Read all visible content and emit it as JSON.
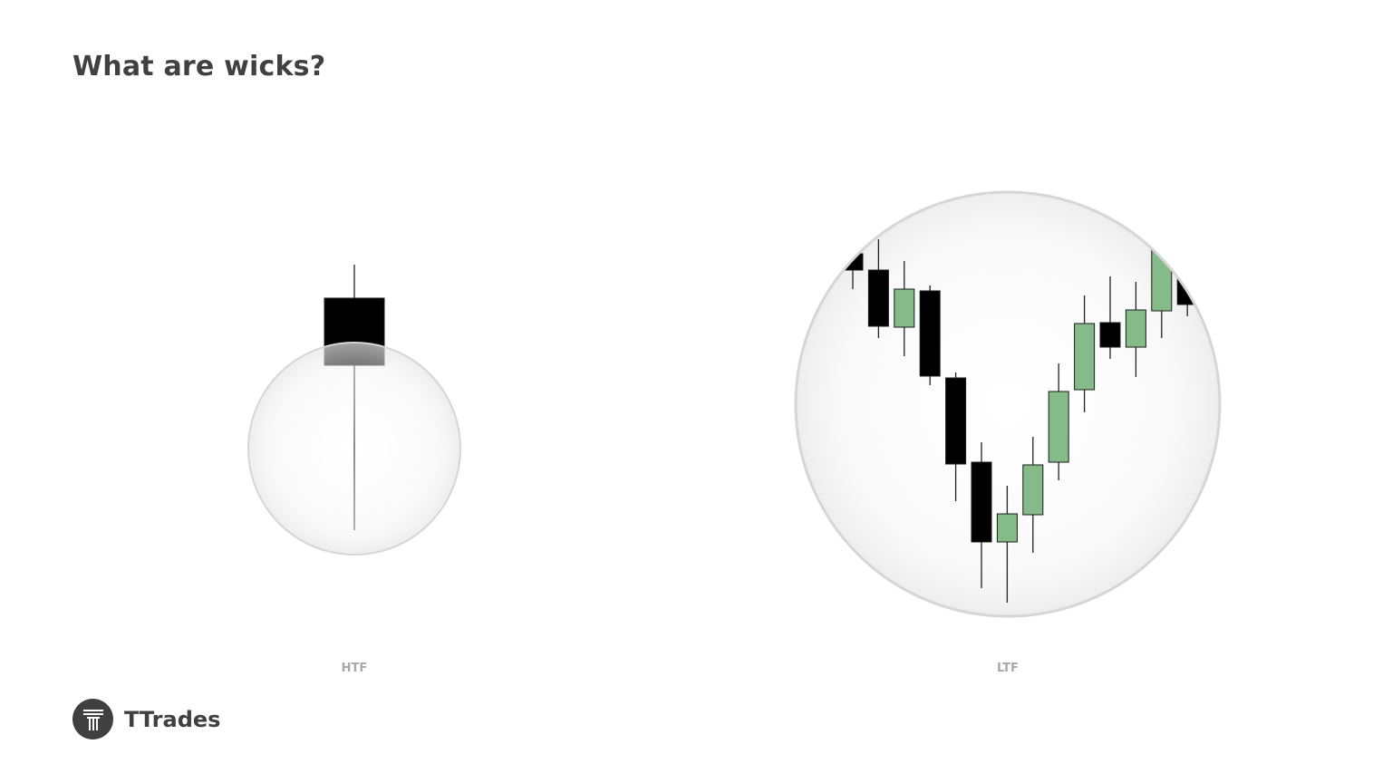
{
  "title": "What are wicks?",
  "brand": {
    "name": "TTrades",
    "logo_icon": "ttrades-logo-icon"
  },
  "colors": {
    "bullish": "#84bb88",
    "bearish": "#000000",
    "text": "#404040",
    "label": "#a8a8a8",
    "lens_border": "#d6d6d6"
  },
  "diagram": {
    "htf": {
      "label": "HTF",
      "candle": {
        "open": 371,
        "high": 408,
        "low": 115,
        "close": 297
      }
    },
    "ltf": {
      "label": "LTF",
      "candles": [
        {
          "open": 420,
          "high": 440,
          "low": 381,
          "close": 402
        },
        {
          "open": 402,
          "high": 436,
          "low": 327,
          "close": 340
        },
        {
          "open": 339,
          "high": 412,
          "low": 307,
          "close": 381
        },
        {
          "open": 379,
          "high": 385,
          "low": 275,
          "close": 285
        },
        {
          "open": 283,
          "high": 289,
          "low": 147,
          "close": 188
        },
        {
          "open": 190,
          "high": 212,
          "low": 51,
          "close": 102
        },
        {
          "open": 102,
          "high": 164,
          "low": 35,
          "close": 133
        },
        {
          "open": 132,
          "high": 218,
          "low": 90,
          "close": 187
        },
        {
          "open": 190,
          "high": 299,
          "low": 170,
          "close": 268
        },
        {
          "open": 270,
          "high": 374,
          "low": 245,
          "close": 343
        },
        {
          "open": 344,
          "high": 395,
          "low": 304,
          "close": 317
        },
        {
          "open": 317,
          "high": 389,
          "low": 284,
          "close": 358
        },
        {
          "open": 357,
          "high": 440,
          "low": 327,
          "close": 430
        },
        {
          "open": 410,
          "high": 420,
          "low": 351,
          "close": 364
        }
      ]
    }
  }
}
